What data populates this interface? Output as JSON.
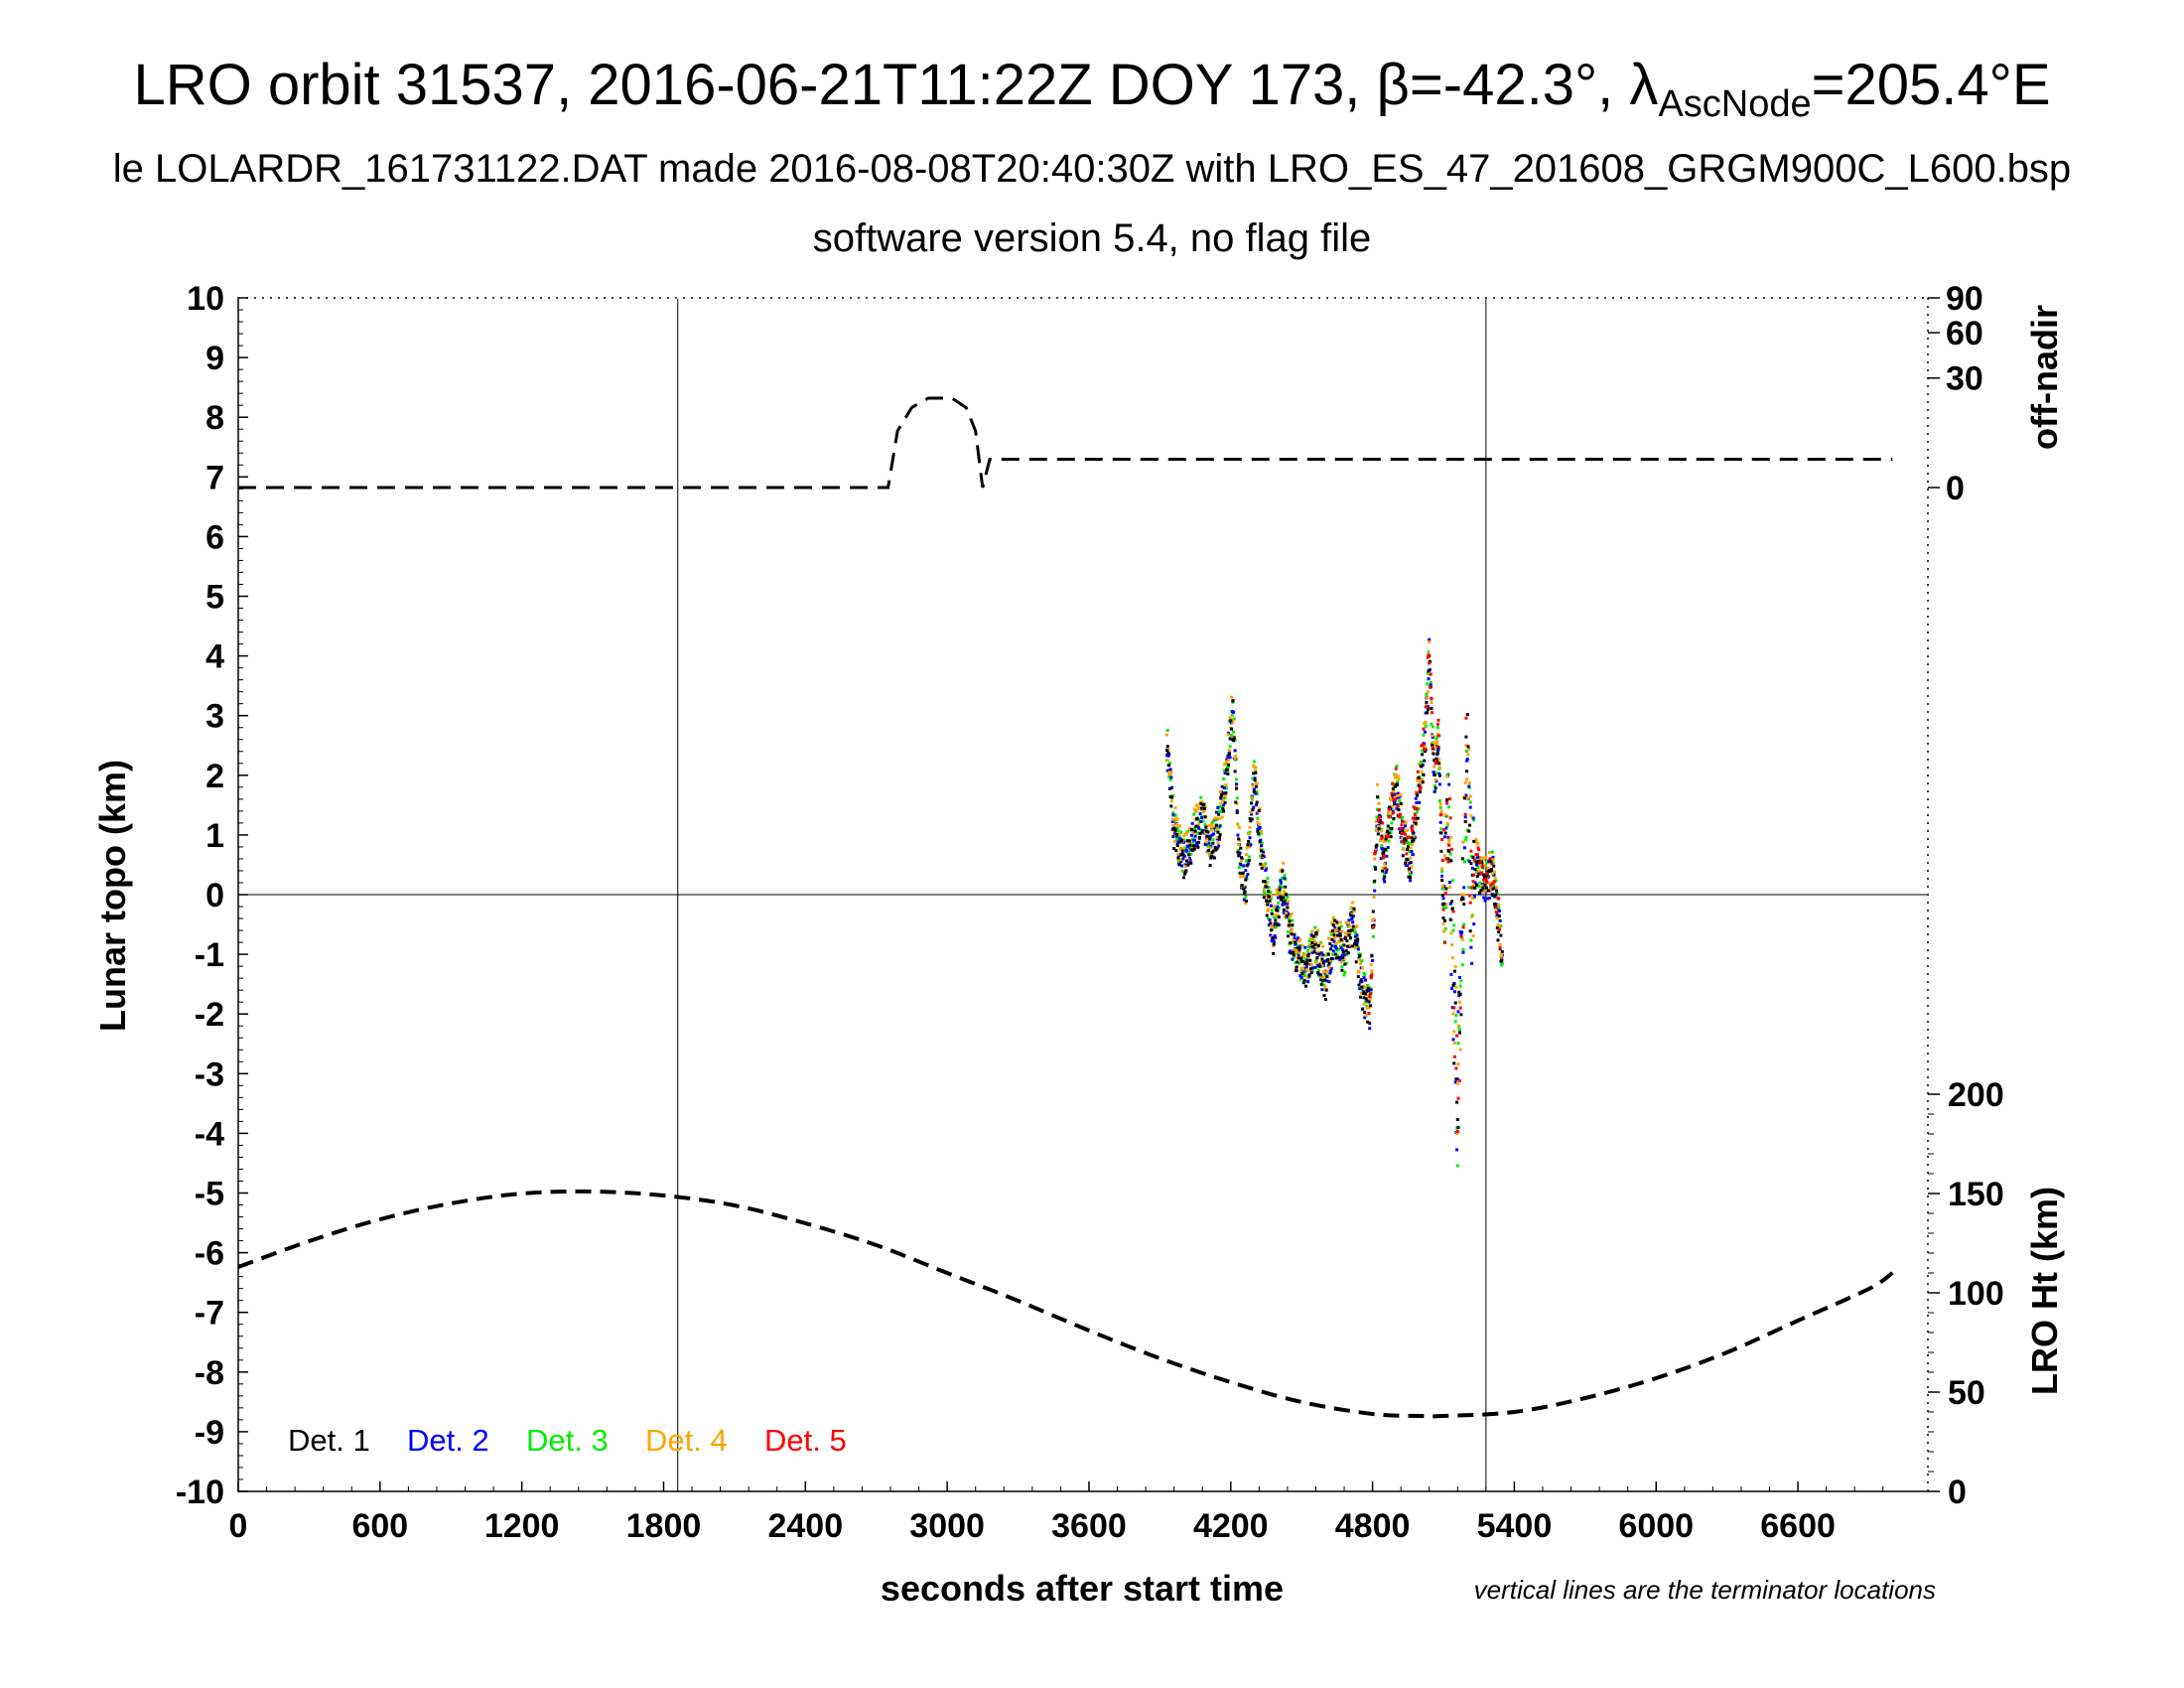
{
  "title": {
    "line1_main": "LRO orbit 31537, 2016-06-21T11:22Z DOY 173, β=-42.3°, λ",
    "line1_sub": "AscNode",
    "line1_end": "=205.4°E",
    "line2": "le LOLARDR_161731122.DAT made 2016-08-08T20:40:30Z with LRO_ES_47_201608_GRGM900C_L600.bsp",
    "line3": "software version 5.4, no flag file"
  },
  "chart_data": {
    "type": "scatter",
    "xlabel": "seconds after start time",
    "ylabel_left": "Lunar topo (km)",
    "ylabel_right_top": "off-nadir",
    "ylabel_right_bottom": "LRO Ht (km)",
    "note": "vertical lines are the terminator locations",
    "xlim": [
      0,
      7150
    ],
    "ylim": [
      -10,
      10
    ],
    "x_ticks": [
      0,
      600,
      1200,
      1800,
      2400,
      3000,
      3600,
      4200,
      4800,
      5400,
      6000,
      6600
    ],
    "y_ticks": [
      10,
      9,
      8,
      7,
      6,
      5,
      4,
      3,
      2,
      1,
      0,
      -1,
      -2,
      -3,
      -4,
      -5,
      -6,
      -7,
      -8,
      -9,
      -10
    ],
    "right_top_ticks": [
      90,
      60,
      30,
      0
    ],
    "right_bottom_ticks": [
      200,
      150,
      100,
      50,
      0
    ],
    "terminators": [
      1860,
      5280
    ],
    "legend": [
      {
        "label": "Det. 1",
        "color": "#000000"
      },
      {
        "label": "Det. 2",
        "color": "#0000ff"
      },
      {
        "label": "Det. 3",
        "color": "#00ee00"
      },
      {
        "label": "Det. 4",
        "color": "#ffa500"
      },
      {
        "label": "Det. 5",
        "color": "#ff0000"
      }
    ],
    "off_nadir_deg": {
      "x": [
        0,
        2750,
        2790,
        2850,
        2920,
        3020,
        3080,
        3120,
        3150,
        3180,
        7000
      ],
      "y": [
        0,
        0,
        8,
        16,
        20,
        20,
        16,
        8,
        0,
        2,
        2
      ]
    },
    "lro_height_km": {
      "x": [
        0,
        300,
        600,
        900,
        1200,
        1500,
        1800,
        2100,
        2400,
        2700,
        3000,
        3300,
        3600,
        3900,
        4200,
        4500,
        4800,
        5000,
        5100,
        5400,
        5700,
        6000,
        6300,
        6600,
        6900,
        7000
      ],
      "y": [
        113,
        126,
        137,
        145,
        150,
        151,
        149,
        144,
        135,
        124,
        110,
        96,
        81,
        67,
        55,
        45,
        39,
        38,
        38,
        40,
        47,
        57,
        70,
        86,
        102,
        110
      ]
    },
    "topo_profile_km": {
      "x": [
        3930,
        3960,
        4000,
        4040,
        4080,
        4110,
        4150,
        4180,
        4210,
        4230,
        4260,
        4300,
        4340,
        4380,
        4420,
        4450,
        4480,
        4520,
        4560,
        4600,
        4640,
        4680,
        4720,
        4760,
        4790,
        4820,
        4850,
        4870,
        4900,
        4930,
        4960,
        4990,
        5020,
        5040,
        5060,
        5080,
        5100,
        5120,
        5140,
        5160,
        5180,
        5200,
        5220,
        5240,
        5270,
        5310,
        5350
      ],
      "y": [
        2.6,
        1.2,
        0.6,
        1.0,
        1.4,
        0.8,
        1.2,
        2.0,
        3.2,
        1.0,
        0.0,
        2.0,
        0.4,
        -0.6,
        0.2,
        -0.6,
        -1.0,
        -1.2,
        -0.8,
        -1.4,
        -0.6,
        -1.0,
        -0.4,
        -1.6,
        -1.9,
        1.5,
        0.5,
        1.2,
        1.9,
        1.0,
        0.6,
        1.6,
        2.5,
        4.0,
        2.0,
        2.6,
        -0.2,
        1.4,
        -1.0,
        -3.5,
        -0.4,
        2.2,
        0.0,
        0.6,
        0.2,
        0.4,
        -1.0
      ]
    }
  }
}
